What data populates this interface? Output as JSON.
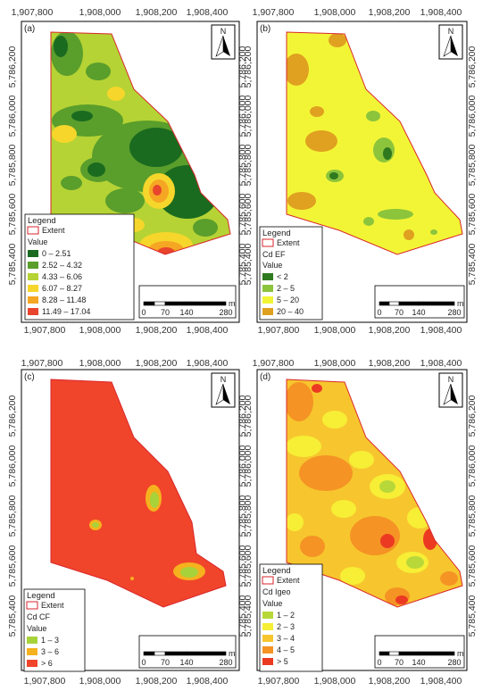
{
  "panels": [
    {
      "id": "a",
      "label": "(a)",
      "x_ticks": [
        "1,907,800",
        "1,908,000",
        "1,908,200",
        "1,908,400"
      ],
      "y_ticks": [
        "5,786,200",
        "5,786,000",
        "5,785,800",
        "5,785,600",
        "5,785,400"
      ],
      "north": "N",
      "scale": {
        "labels": [
          "0",
          "70",
          "140",
          "280"
        ],
        "unit": "m"
      },
      "legend": {
        "title": "Legend",
        "extent_label": "Extent",
        "subtitle": "",
        "value_label": "Value",
        "classes": [
          {
            "label": "0 – 2.51",
            "color": "#1a6b1f"
          },
          {
            "label": "2.52 – 4.32",
            "color": "#5a9e2c"
          },
          {
            "label": "4.33 – 6.06",
            "color": "#b5d334"
          },
          {
            "label": "6.07 – 8.27",
            "color": "#f6d62b"
          },
          {
            "label": "8.28 – 11.48",
            "color": "#f5a623"
          },
          {
            "label": "11.49 – 17.04",
            "color": "#e8452c"
          }
        ]
      }
    },
    {
      "id": "b",
      "label": "(b)",
      "x_ticks": [
        "1,907,800",
        "1,908,000",
        "1,908,200",
        "1,908,400"
      ],
      "y_ticks": [
        "5,786,200",
        "5,786,000",
        "5,785,800",
        "5,785,600",
        "5,785,400"
      ],
      "north": "N",
      "scale": {
        "labels": [
          "0",
          "70",
          "140",
          "280"
        ],
        "unit": "m"
      },
      "legend": {
        "title": "Legend",
        "extent_label": "Extent",
        "subtitle": "Cd EF",
        "value_label": "Value",
        "classes": [
          {
            "label": "< 2",
            "color": "#2f7a1f"
          },
          {
            "label": "2 – 5",
            "color": "#8cc43c"
          },
          {
            "label": "5 – 20",
            "color": "#f2f536"
          },
          {
            "label": "20 – 40",
            "color": "#e0a020"
          }
        ]
      }
    },
    {
      "id": "c",
      "label": "(c)",
      "x_ticks": [
        "1,907,800",
        "1,908,000",
        "1,908,200",
        "1,908,400"
      ],
      "y_ticks": [
        "5,786,200",
        "5,786,000",
        "5,785,800",
        "5,785,600",
        "5,785,400"
      ],
      "north": "N",
      "scale": {
        "labels": [
          "0",
          "70",
          "140",
          "280"
        ],
        "unit": "m"
      },
      "legend": {
        "title": "Legend",
        "extent_label": "Extent",
        "subtitle": "Cd CF",
        "value_label": "Value",
        "classes": [
          {
            "label": "1 – 3",
            "color": "#a8d23a"
          },
          {
            "label": "3 – 6",
            "color": "#f5b21e"
          },
          {
            "label": "> 6",
            "color": "#f0452b"
          }
        ]
      }
    },
    {
      "id": "d",
      "label": "(d)",
      "x_ticks": [
        "1,907,800",
        "1,908,000",
        "1,908,200",
        "1,908,400"
      ],
      "y_ticks": [
        "5,786,200",
        "5,786,000",
        "5,785,800",
        "5,785,600",
        "5,785,400"
      ],
      "north": "N",
      "scale": {
        "labels": [
          "0",
          "70",
          "140",
          "280"
        ],
        "unit": "m"
      },
      "legend": {
        "title": "Legend",
        "extent_label": "Extent",
        "subtitle": "Cd Igeo",
        "value_label": "Value",
        "classes": [
          {
            "label": "1 – 2",
            "color": "#b8d83a"
          },
          {
            "label": "2 – 3",
            "color": "#f7ee36"
          },
          {
            "label": "3 – 4",
            "color": "#f7c62e"
          },
          {
            "label": "4 – 5",
            "color": "#f59324"
          },
          {
            "label": "> 5",
            "color": "#ec3a22"
          }
        ]
      }
    }
  ],
  "colors": {
    "extent_outline": "#d9262b",
    "frame": "#000000"
  }
}
